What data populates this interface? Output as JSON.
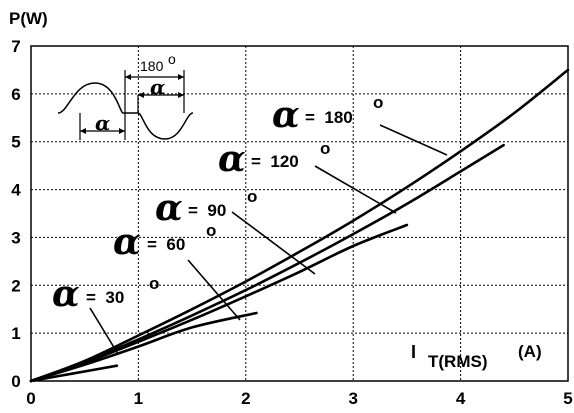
{
  "chart_data": {
    "type": "line",
    "xlabel": "I",
    "xlabel_sub": "T(RMS)",
    "xlabel_unit": "(A)",
    "ylabel": "P(W)",
    "xlim": [
      0,
      5
    ],
    "ylim": [
      0,
      7
    ],
    "x_ticks": [
      "0",
      "1",
      "2",
      "3",
      "4",
      "5"
    ],
    "y_ticks": [
      "0",
      "1",
      "2",
      "3",
      "4",
      "5",
      "6",
      "7"
    ],
    "grid": true,
    "series": [
      {
        "name": "180°",
        "points": [
          [
            0,
            0
          ],
          [
            0.5,
            0.42
          ],
          [
            1,
            0.95
          ],
          [
            1.5,
            1.5
          ],
          [
            2,
            2.08
          ],
          [
            2.5,
            2.7
          ],
          [
            3,
            3.35
          ],
          [
            3.5,
            4.05
          ],
          [
            4,
            4.8
          ],
          [
            4.5,
            5.6
          ],
          [
            5,
            6.5
          ]
        ]
      },
      {
        "name": "120°",
        "points": [
          [
            0,
            0
          ],
          [
            0.5,
            0.4
          ],
          [
            1,
            0.87
          ],
          [
            1.5,
            1.37
          ],
          [
            2,
            1.9
          ],
          [
            2.5,
            2.47
          ],
          [
            3,
            3.07
          ],
          [
            3.5,
            3.7
          ],
          [
            4,
            4.38
          ],
          [
            4.4,
            4.93
          ]
        ]
      },
      {
        "name": "90°",
        "points": [
          [
            0,
            0
          ],
          [
            0.5,
            0.38
          ],
          [
            1,
            0.82
          ],
          [
            1.5,
            1.28
          ],
          [
            2,
            1.77
          ],
          [
            2.5,
            2.28
          ],
          [
            3,
            2.82
          ],
          [
            3.5,
            3.26
          ]
        ]
      },
      {
        "name": "60°",
        "points": [
          [
            0,
            0
          ],
          [
            0.5,
            0.34
          ],
          [
            1,
            0.72
          ],
          [
            1.5,
            1.12
          ],
          [
            2.1,
            1.42
          ]
        ]
      },
      {
        "name": "30°",
        "points": [
          [
            0,
            0
          ],
          [
            0.4,
            0.16
          ],
          [
            0.8,
            0.32
          ]
        ]
      }
    ],
    "annotations": [
      {
        "symbol": "α",
        "text": "=  180",
        "degree": "o"
      },
      {
        "symbol": "α",
        "text": "=  120",
        "degree": "o"
      },
      {
        "symbol": "α",
        "text": "=  90",
        "degree": "o"
      },
      {
        "symbol": "α",
        "text": "=  60",
        "degree": "o"
      },
      {
        "symbol": "α",
        "text": "=  30",
        "degree": "o"
      }
    ],
    "inset": {
      "label_180": "180",
      "degree": "o",
      "alpha_symbol": "α"
    }
  }
}
